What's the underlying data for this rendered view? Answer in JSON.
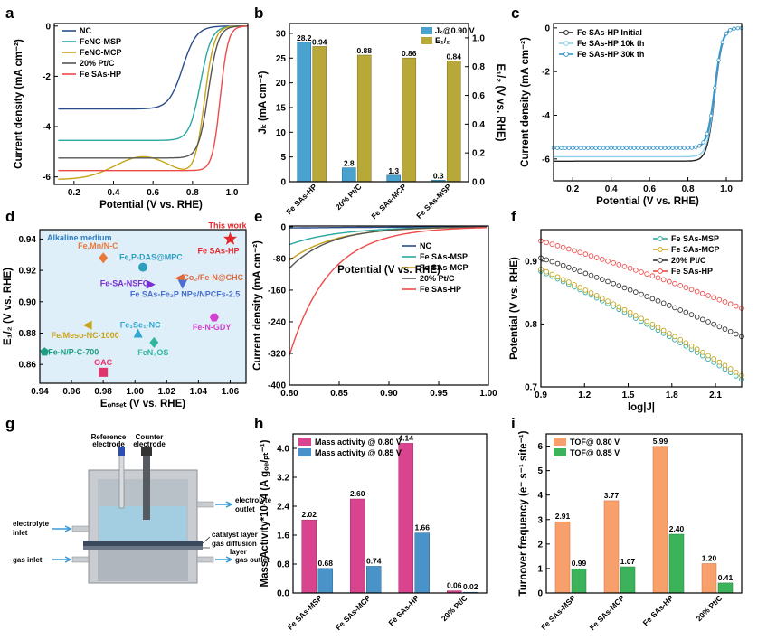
{
  "panels": {
    "a": "a",
    "b": "b",
    "c": "c",
    "d": "d",
    "e": "e",
    "f": "f",
    "g": "g",
    "h": "h",
    "i": "i"
  },
  "colors": {
    "NC": "#2b4c8a",
    "MSP": "#29a8a0",
    "MCP": "#c7a414",
    "PtC": "#555555",
    "HP": "#ef4a4a",
    "barBlue": "#4aa3cf",
    "barOlive": "#b8a83a",
    "barPink": "#d9448f",
    "barBlue2": "#4a93c9",
    "barOrange": "#f7a06b",
    "barGreen": "#3cb35b"
  },
  "chart_data": [
    {
      "id": "a",
      "type": "line",
      "xlabel": "Potential (V vs. RHE)",
      "ylabel": "Current density (mA cm⁻²)",
      "xlim": [
        0.1,
        1.08
      ],
      "ylim": [
        -6.3,
        0.1
      ],
      "xticks": [
        "0.2",
        "0.4",
        "0.6",
        "0.8",
        "1.0"
      ],
      "yticks": [
        "0",
        "-2",
        "-4",
        "-6"
      ],
      "series": [
        {
          "name": "NC",
          "color": "#2b4c8a",
          "limit": -3.3,
          "e_half": 0.75,
          "k": 0.035
        },
        {
          "name": "FeNC-MSP",
          "color": "#29a8a0",
          "limit": -4.55,
          "e_half": 0.84,
          "k": 0.028
        },
        {
          "name": "FeNC-MCP",
          "color": "#c7a414",
          "limit": -6.1,
          "e_half": 0.86,
          "k": 0.025
        },
        {
          "name": "20% Pt/C",
          "color": "#555555",
          "limit": -5.25,
          "e_half": 0.88,
          "k": 0.025
        },
        {
          "name": "Fe SAs-HP",
          "color": "#ef4a4a",
          "limit": -5.75,
          "e_half": 0.94,
          "k": 0.02
        }
      ]
    },
    {
      "id": "b",
      "type": "bar",
      "categories": [
        "Fe SAs-HP",
        "20% Pt/C",
        "Fe SAs-MCP",
        "Fe SAs-MSP"
      ],
      "ylabel_left": "Jₖ (mA cm⁻²)",
      "ylabel_right": "E₁/₂ (V vs. RHE)",
      "ylim_left": [
        0,
        32
      ],
      "ylim_right": [
        0,
        1.1
      ],
      "yticks_left": [
        "0",
        "5",
        "10",
        "15",
        "20",
        "25",
        "30"
      ],
      "yticks_right": [
        "0.0",
        "0.2",
        "0.4",
        "0.6",
        "0.8",
        "1.0"
      ],
      "series": [
        {
          "name": "Jₖ@0.90 V",
          "values": [
            28.2,
            2.8,
            1.3,
            0.3
          ],
          "labels": [
            "28.2",
            "2.8",
            "1.3",
            "0.3"
          ]
        },
        {
          "name": "E₁/₂",
          "values": [
            0.94,
            0.88,
            0.86,
            0.84
          ],
          "labels": [
            "0.94",
            "0.88",
            "0.86",
            "0.84"
          ]
        }
      ]
    },
    {
      "id": "c",
      "type": "line",
      "xlabel": "Potential (V vs. RHE)",
      "ylabel": "Current density (mA cm⁻²)",
      "xlim": [
        0.1,
        1.08
      ],
      "ylim": [
        -7,
        0.2
      ],
      "xticks": [
        "0.2",
        "0.4",
        "0.6",
        "0.8",
        "1.0"
      ],
      "yticks": [
        "0",
        "-2",
        "-4",
        "-6"
      ],
      "series": [
        {
          "name": "Fe SAs-HP Initial",
          "color": "#222222",
          "limit": -6.1,
          "e_half": 0.94,
          "k": 0.02
        },
        {
          "name": "Fe SAs-HP 10k th",
          "color": "#8fd0ef",
          "limit": -5.9,
          "e_half": 0.94,
          "k": 0.02
        },
        {
          "name": "Fe SAs-HP 30k th",
          "color": "#3a98c9",
          "limit": -5.5,
          "e_half": 0.94,
          "k": 0.02
        }
      ]
    },
    {
      "id": "d",
      "type": "scatter",
      "annotation": "Alkaline medium",
      "xlabel": "Eₒₙₛₑₜ (V vs. RHE)",
      "ylabel": "E₁/₂ (V vs. RHE)",
      "xlim": [
        0.94,
        1.07
      ],
      "ylim": [
        0.848,
        0.946
      ],
      "xticks": [
        "0.94",
        "0.96",
        "0.98",
        "1.00",
        "1.02",
        "1.04",
        "1.06"
      ],
      "yticks": [
        "0.86",
        "0.88",
        "0.90",
        "0.92",
        "0.94"
      ],
      "points": [
        {
          "label": "This work",
          "label2": "Fe SAs-HP",
          "x": 1.06,
          "y": 0.94,
          "color": "#e8262b",
          "marker": "star"
        },
        {
          "label": "Fe,Mn/N-C",
          "x": 0.98,
          "y": 0.928,
          "color": "#e9793b",
          "marker": "diamond"
        },
        {
          "label": "Fe,P-DAS@MPC",
          "x": 1.005,
          "y": 0.922,
          "color": "#2f9fbf",
          "marker": "circle"
        },
        {
          "label": "Co₂/Fe-N@CHC",
          "x": 1.028,
          "y": 0.915,
          "color": "#e06a3c",
          "marker": "triangle-left"
        },
        {
          "label": "Fe-SA-NSFC",
          "x": 1.01,
          "y": 0.911,
          "color": "#7b2fd0",
          "marker": "triangle-right"
        },
        {
          "label": "Fe SAs-Fe₂P NPs/NPCFs-2.5",
          "x": 1.03,
          "y": 0.911,
          "color": "#4a6fd0",
          "marker": "triangle-down"
        },
        {
          "label": "Fe-N-GDY",
          "x": 1.05,
          "y": 0.89,
          "color": "#d43fd0",
          "marker": "hexagon"
        },
        {
          "label": "Fe₁Se₁-NC",
          "x": 1.002,
          "y": 0.88,
          "color": "#2fa7d0",
          "marker": "triangle-up"
        },
        {
          "label": "Fe/Meso-NC-1000",
          "x": 0.97,
          "y": 0.885,
          "color": "#c9a41f",
          "marker": "triangle-left"
        },
        {
          "label": "FeN₃OS",
          "x": 1.012,
          "y": 0.874,
          "color": "#2fb7a0",
          "marker": "diamond"
        },
        {
          "label": "Fe-N/P-C-700",
          "x": 0.943,
          "y": 0.868,
          "color": "#1f9d83",
          "marker": "pentagon"
        },
        {
          "label": "OAC",
          "x": 0.98,
          "y": 0.855,
          "color": "#e0356b",
          "marker": "square"
        }
      ]
    },
    {
      "id": "e",
      "type": "line",
      "xlabel": "Potential (V vs. RHE)",
      "ylabel": "Current density (mA cm⁻²)",
      "xlim": [
        0.8,
        1.0
      ],
      "ylim": [
        -400,
        2
      ],
      "xticks": [
        "0.80",
        "0.85",
        "0.90",
        "0.95",
        "1.00"
      ],
      "yticks": [
        "0",
        "-80",
        "-160",
        "-240",
        "-320",
        "-400"
      ],
      "series": [
        {
          "name": "NC",
          "color": "#2b4c8a",
          "j080": -3,
          "b": 0.1
        },
        {
          "name": "Fe SAs-MSP",
          "color": "#29a8a0",
          "j080": -45,
          "b": 0.05
        },
        {
          "name": "Fe SAs-MCP",
          "color": "#c7a414",
          "j080": -85,
          "b": 0.045
        },
        {
          "name": "20% Pt/C",
          "color": "#555555",
          "j080": -105,
          "b": 0.04
        },
        {
          "name": "Fe SAs-HP",
          "color": "#ef4a4a",
          "j080": -325,
          "b": 0.04
        }
      ]
    },
    {
      "id": "f",
      "type": "scatter-line",
      "xlabel": "log|J|",
      "ylabel": "Potential (V vs. RHE)",
      "xlim": [
        0.9,
        2.28
      ],
      "ylim": [
        0.7,
        0.95
      ],
      "xticks": [
        "0.9",
        "1.2",
        "1.5",
        "1.8",
        "2.1"
      ],
      "yticks": [
        "0.7",
        "0.8",
        "0.9"
      ],
      "series": [
        {
          "name": "Fe SAs-MSP",
          "color": "#29a8a0",
          "y_start": 0.884,
          "y_end": 0.712
        },
        {
          "name": "Fe SAs-MCP",
          "color": "#c7a414",
          "y_start": 0.887,
          "y_end": 0.718
        },
        {
          "name": "20% Pt/C",
          "color": "#333333",
          "y_start": 0.905,
          "y_end": 0.78
        },
        {
          "name": "Fe SAs-HP",
          "color": "#ef4a4a",
          "y_start": 0.932,
          "y_end": 0.825
        }
      ]
    },
    {
      "id": "h",
      "type": "bar",
      "categories": [
        "Fe SAs-MSP",
        "Fe SAs-MCP",
        "Fe SAs-HP",
        "20% Pt/C"
      ],
      "ylabel": "Mass Activity*10^4 (A gₒₑ/ₚₜ⁻¹)",
      "ylim": [
        0,
        4.4
      ],
      "yticks": [
        "0.0",
        "0.8",
        "1.6",
        "2.4",
        "3.2",
        "4.0"
      ],
      "series": [
        {
          "name": "Mass activity @ 0.80 V",
          "values": [
            2.02,
            2.6,
            4.14,
            0.06
          ],
          "labels": [
            "2.02",
            "2.60",
            "4.14",
            "0.06"
          ]
        },
        {
          "name": "Mass activity @ 0.85 V",
          "values": [
            0.68,
            0.74,
            1.66,
            0.02
          ],
          "labels": [
            "0.68",
            "0.74",
            "1.66",
            "0.02"
          ]
        }
      ]
    },
    {
      "id": "i",
      "type": "bar",
      "categories": [
        "Fe SAs-MSP",
        "Fe SAs-MCP",
        "Fe SAs-HP",
        "20% Pt/C"
      ],
      "ylabel": "Turnover frequency (e⁻ s⁻¹ site⁻¹)",
      "ylim": [
        0,
        6.5
      ],
      "yticks": [
        "0",
        "1",
        "2",
        "3",
        "4",
        "5",
        "6"
      ],
      "series": [
        {
          "name": "TOF@ 0.80 V",
          "values": [
            2.91,
            3.77,
            5.99,
            1.2
          ],
          "labels": [
            "2.91",
            "3.77",
            "5.99",
            "1.20"
          ]
        },
        {
          "name": "TOF@ 0.85 V",
          "values": [
            0.99,
            1.07,
            2.4,
            0.41
          ],
          "labels": [
            "0.99",
            "1.07",
            "2.40",
            "0.41"
          ]
        }
      ]
    }
  ],
  "schematic_g": {
    "reference_electrode": "Reference electrode",
    "counter_electrode": "Counter electrode",
    "electrolyte_outlet": "electrolyte outlet",
    "electrolyte_inlet": "electrolyte inlet",
    "catalyst_layer": "catalyst layer",
    "gas_diffusion_layer": "gas diffusion layer",
    "gas_inlet": "gas inlet",
    "gas_outlet": "gas outlet"
  }
}
